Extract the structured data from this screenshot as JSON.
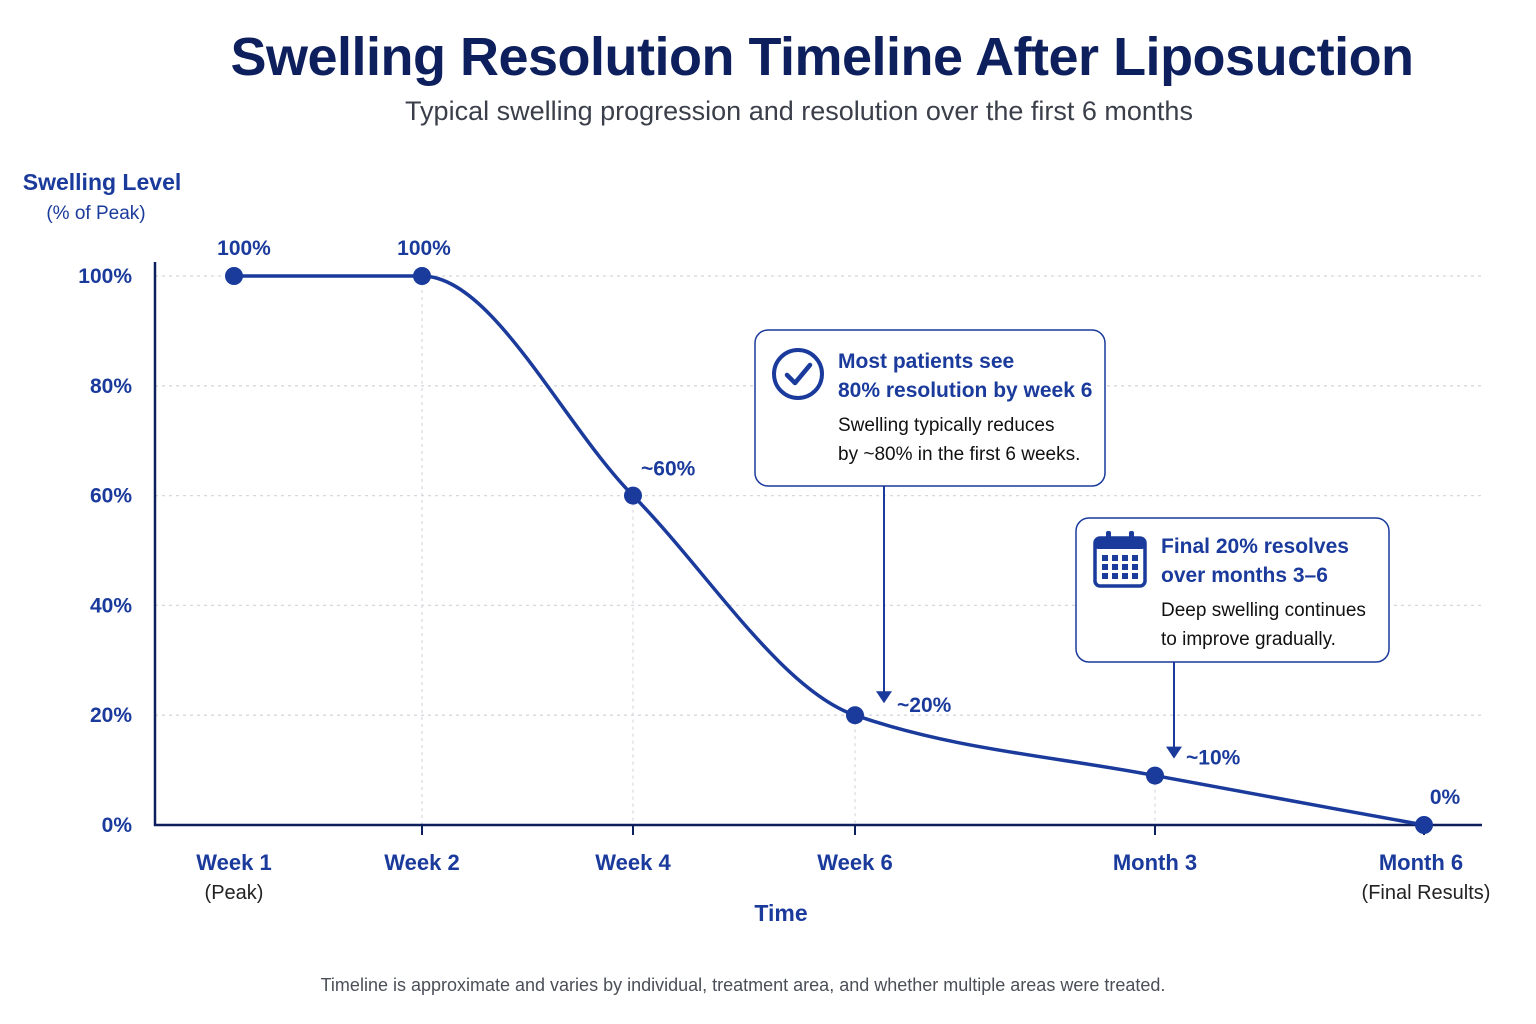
{
  "header": {
    "title": "Swelling Resolution Timeline After Liposuction",
    "subtitle": "Typical swelling progression and resolution over the first 6 months"
  },
  "footnote": "Timeline is approximate and varies by individual, treatment area, and whether multiple areas were treated.",
  "colors": {
    "line": "#1a3a9c",
    "title": "#0d1f5c",
    "grid": "#d6d8de"
  },
  "chart_data": {
    "type": "line",
    "title": "Swelling Resolution Timeline After Liposuction",
    "subtitle": "Typical swelling progression and resolution over the first 6 months",
    "ylabel": "Swelling Level",
    "ylabel_sub": "(% of Peak)",
    "xlabel": "Time",
    "ylim": [
      0,
      100
    ],
    "yticks": [
      "0%",
      "20%",
      "40%",
      "60%",
      "80%",
      "100%"
    ],
    "grid": true,
    "categories": [
      "Week 1",
      "Week 2",
      "Week 4",
      "Week 6",
      "Month 3",
      "Month 6"
    ],
    "category_sublabels": [
      "(Peak)",
      "",
      "",
      "",
      "",
      "(Final Results)"
    ],
    "weeks": [
      1,
      2,
      4,
      6,
      13,
      26
    ],
    "values": [
      100,
      100,
      60,
      20,
      9,
      0
    ],
    "point_labels": [
      "100%",
      "100%",
      "~60%",
      "~20%",
      "~10%",
      "0%"
    ],
    "callouts": [
      {
        "icon": "check-circle-icon",
        "title_lines": [
          "Most patients see",
          "80% resolution by week 6"
        ],
        "body_lines": [
          "Swelling typically reduces",
          "by ~80% in the first 6 weeks."
        ],
        "points_to": "Week 6"
      },
      {
        "icon": "calendar-icon",
        "title_lines": [
          "Final 20% resolves",
          "over months 3–6"
        ],
        "body_lines": [
          "Deep swelling continues",
          "to improve gradually."
        ],
        "points_to": "Month 3"
      }
    ]
  }
}
